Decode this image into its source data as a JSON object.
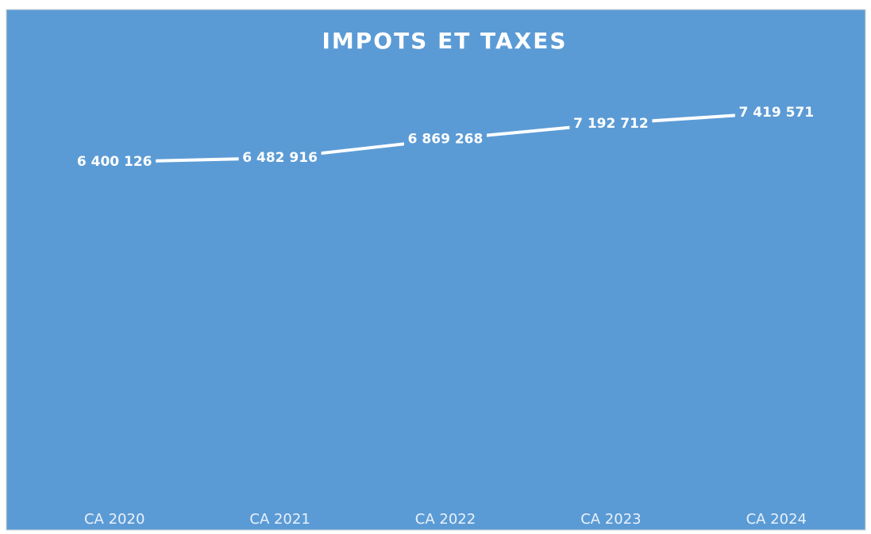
{
  "chart_data": {
    "type": "line",
    "title": "IMPOTS ET TAXES",
    "categories": [
      "CA 2020",
      "CA 2021",
      "CA 2022",
      "CA 2023",
      "CA 2024"
    ],
    "series": [
      {
        "color": "#ffffff",
        "values": [
          6400126,
          6482916,
          6869268,
          7192712,
          7419571
        ],
        "value_labels": [
          "6 400 126",
          "6 482 916",
          "6 869 268",
          "7 192 712",
          "7 419 571"
        ]
      }
    ]
  }
}
